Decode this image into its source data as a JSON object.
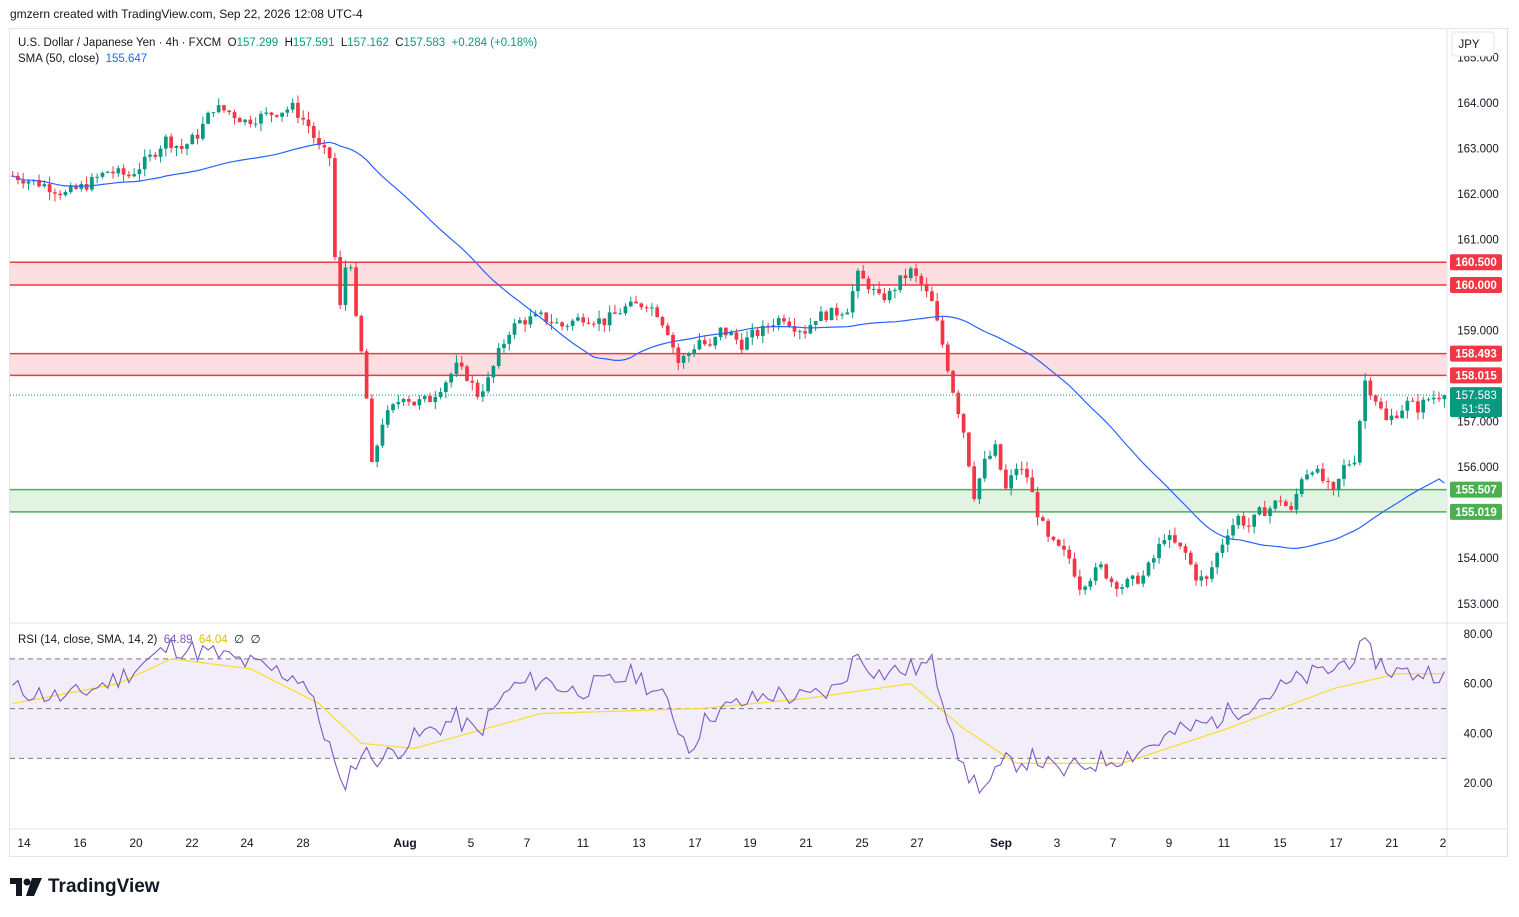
{
  "header": {
    "created_by": "gmzern created with TradingView.com, Sep 22, 2026 12:08 UTC-4"
  },
  "legend": {
    "symbol": "U.S. Dollar / Japanese Yen · 4h · FXCM",
    "o_label": "O",
    "o_value": "157.299",
    "h_label": "H",
    "h_value": "157.591",
    "l_label": "L",
    "l_value": "157.162",
    "c_label": "C",
    "c_value": "157.583",
    "change": "+0.284 (+0.18%)",
    "sma_label": "SMA (50, close)",
    "sma_value": "155.647"
  },
  "rsi_legend": {
    "label": "RSI (14, close, SMA, 14, 2)",
    "rsi": "64.89",
    "sma": "64.04",
    "extra1": "∅",
    "extra2": "∅"
  },
  "currency": "JPY",
  "price_labels": {
    "current": "157.583",
    "countdown": "51:55"
  },
  "brand": {
    "name": "TradingView"
  },
  "colors": {
    "up": "#089981",
    "down": "#f23645",
    "sma": "#2962ff",
    "rsi": "#7e57c2",
    "rsi_sma": "#f5e03a",
    "resistance_zone": "#f23645",
    "support_zone": "#4caf50"
  },
  "chart_data": [
    {
      "type": "candlestick",
      "title": "U.S. Dollar / Japanese Yen · 4h · FXCM",
      "x_tick_labels": [
        "14",
        "16",
        "20",
        "22",
        "24",
        "28",
        "Aug",
        "5",
        "7",
        "11",
        "13",
        "17",
        "19",
        "21",
        "25",
        "27",
        "Sep",
        "3",
        "7",
        "9",
        "11",
        "15",
        "17",
        "21",
        "2"
      ],
      "y_tick_labels": [
        "165.000",
        "164.000",
        "163.000",
        "162.000",
        "161.000",
        "159.000",
        "157.000",
        "156.000",
        "154.000",
        "153.000"
      ],
      "ylim": [
        152.6,
        165.6
      ],
      "zones": [
        {
          "kind": "resistance",
          "low": 160.0,
          "high": 160.5,
          "low_label": "160.000",
          "high_label": "160.500"
        },
        {
          "kind": "resistance",
          "low": 158.015,
          "high": 158.493,
          "low_label": "158.015",
          "high_label": "158.493"
        },
        {
          "kind": "support",
          "low": 155.019,
          "high": 155.507,
          "low_label": "155.019",
          "high_label": "155.507"
        }
      ],
      "current_price": 157.583,
      "close_path": [
        [
          0,
          162.4
        ],
        [
          6,
          162.2
        ],
        [
          10,
          162.0
        ],
        [
          14,
          162.2
        ],
        [
          18,
          162.5
        ],
        [
          22,
          162.4
        ],
        [
          26,
          162.8
        ],
        [
          29,
          163.2
        ],
        [
          32,
          163.0
        ],
        [
          35,
          163.3
        ],
        [
          38,
          163.9
        ],
        [
          41,
          163.8
        ],
        [
          44,
          163.6
        ],
        [
          47,
          163.7
        ],
        [
          50,
          163.8
        ],
        [
          53,
          163.9
        ],
        [
          56,
          163.5
        ],
        [
          58,
          163.0
        ],
        [
          60,
          162.8
        ],
        [
          61,
          160.6
        ],
        [
          62,
          159.5
        ],
        [
          63,
          160.4
        ],
        [
          64,
          160.5
        ],
        [
          65,
          159.2
        ],
        [
          66,
          158.5
        ],
        [
          67,
          157.5
        ],
        [
          68,
          156.0
        ],
        [
          69,
          156.5
        ],
        [
          70,
          157.0
        ],
        [
          72,
          157.3
        ],
        [
          74,
          157.6
        ],
        [
          76,
          157.4
        ],
        [
          79,
          157.5
        ],
        [
          82,
          157.9
        ],
        [
          84,
          158.2
        ],
        [
          86,
          158.0
        ],
        [
          88,
          157.6
        ],
        [
          90,
          157.9
        ],
        [
          92,
          158.5
        ],
        [
          94,
          159.0
        ],
        [
          96,
          159.2
        ],
        [
          100,
          159.3
        ],
        [
          104,
          159.1
        ],
        [
          108,
          159.3
        ],
        [
          112,
          159.2
        ],
        [
          116,
          159.5
        ],
        [
          120,
          159.6
        ],
        [
          122,
          159.4
        ],
        [
          124,
          159.0
        ],
        [
          126,
          158.3
        ],
        [
          128,
          158.5
        ],
        [
          130,
          158.8
        ],
        [
          132,
          158.6
        ],
        [
          134,
          159.0
        ],
        [
          136,
          158.9
        ],
        [
          138,
          158.7
        ],
        [
          140,
          158.9
        ],
        [
          142,
          159.0
        ],
        [
          144,
          159.2
        ],
        [
          146,
          159.3
        ],
        [
          148,
          159.1
        ],
        [
          150,
          159.0
        ],
        [
          152,
          159.3
        ],
        [
          156,
          159.4
        ],
        [
          158,
          159.5
        ],
        [
          160,
          160.2
        ],
        [
          162,
          160.0
        ],
        [
          164,
          159.7
        ],
        [
          166,
          159.8
        ],
        [
          168,
          160.1
        ],
        [
          170,
          160.3
        ],
        [
          172,
          160.0
        ],
        [
          174,
          159.6
        ],
        [
          176,
          158.7
        ],
        [
          178,
          157.7
        ],
        [
          180,
          156.8
        ],
        [
          182,
          155.4
        ],
        [
          184,
          156.1
        ],
        [
          186,
          156.4
        ],
        [
          188,
          155.5
        ],
        [
          190,
          156.0
        ],
        [
          192,
          155.8
        ],
        [
          194,
          155.0
        ],
        [
          196,
          154.4
        ],
        [
          198,
          154.2
        ],
        [
          200,
          154.0
        ],
        [
          202,
          153.4
        ],
        [
          204,
          153.6
        ],
        [
          206,
          153.8
        ],
        [
          208,
          153.5
        ],
        [
          210,
          153.4
        ],
        [
          212,
          153.5
        ],
        [
          214,
          153.6
        ],
        [
          216,
          154.0
        ],
        [
          218,
          154.5
        ],
        [
          220,
          154.3
        ],
        [
          222,
          154.1
        ],
        [
          224,
          153.6
        ],
        [
          226,
          153.5
        ],
        [
          228,
          154.1
        ],
        [
          230,
          154.6
        ],
        [
          232,
          154.9
        ],
        [
          234,
          154.7
        ],
        [
          236,
          155.0
        ],
        [
          238,
          155.1
        ],
        [
          240,
          155.3
        ],
        [
          242,
          155.0
        ],
        [
          244,
          155.8
        ],
        [
          246,
          156.0
        ],
        [
          248,
          155.7
        ],
        [
          250,
          155.4
        ],
        [
          252,
          156.0
        ],
        [
          254,
          156.2
        ],
        [
          256,
          157.9
        ],
        [
          258,
          157.5
        ],
        [
          260,
          157.0
        ],
        [
          262,
          157.2
        ],
        [
          264,
          157.4
        ],
        [
          266,
          157.3
        ],
        [
          268,
          157.5
        ],
        [
          270,
          157.583
        ]
      ],
      "indicator": {
        "name": "SMA (50, close)",
        "last_value": 155.647
      }
    },
    {
      "type": "line",
      "title": "RSI (14, close, SMA, 14, 2)",
      "y_tick_labels": [
        "80.00",
        "60.00",
        "40.00",
        "20.00"
      ],
      "ylim": [
        2,
        84
      ],
      "band": [
        30,
        70
      ],
      "midline": 50,
      "rsi_path": [
        [
          0,
          58
        ],
        [
          10,
          54
        ],
        [
          20,
          62
        ],
        [
          30,
          75
        ],
        [
          38,
          72
        ],
        [
          45,
          68
        ],
        [
          55,
          62
        ],
        [
          60,
          35
        ],
        [
          62,
          18
        ],
        [
          66,
          32
        ],
        [
          70,
          30
        ],
        [
          76,
          38
        ],
        [
          84,
          46
        ],
        [
          88,
          40
        ],
        [
          94,
          58
        ],
        [
          100,
          62
        ],
        [
          106,
          57
        ],
        [
          112,
          60
        ],
        [
          118,
          64
        ],
        [
          124,
          52
        ],
        [
          128,
          34
        ],
        [
          132,
          48
        ],
        [
          138,
          52
        ],
        [
          144,
          56
        ],
        [
          150,
          54
        ],
        [
          156,
          58
        ],
        [
          160,
          72
        ],
        [
          164,
          64
        ],
        [
          170,
          66
        ],
        [
          174,
          68
        ],
        [
          178,
          42
        ],
        [
          180,
          24
        ],
        [
          184,
          18
        ],
        [
          188,
          28
        ],
        [
          194,
          30
        ],
        [
          198,
          24
        ],
        [
          204,
          28
        ],
        [
          212,
          32
        ],
        [
          220,
          40
        ],
        [
          226,
          44
        ],
        [
          232,
          50
        ],
        [
          238,
          56
        ],
        [
          244,
          62
        ],
        [
          250,
          66
        ],
        [
          256,
          74
        ],
        [
          260,
          66
        ],
        [
          264,
          64
        ],
        [
          270,
          64.89
        ]
      ],
      "rsi_sma_path": [
        [
          0,
          52
        ],
        [
          20,
          60
        ],
        [
          30,
          70
        ],
        [
          45,
          66
        ],
        [
          58,
          52
        ],
        [
          66,
          36
        ],
        [
          76,
          34
        ],
        [
          100,
          48
        ],
        [
          130,
          50
        ],
        [
          150,
          54
        ],
        [
          170,
          60
        ],
        [
          180,
          42
        ],
        [
          190,
          28
        ],
        [
          210,
          28
        ],
        [
          230,
          42
        ],
        [
          250,
          58
        ],
        [
          262,
          64
        ],
        [
          270,
          64.04
        ]
      ]
    }
  ]
}
